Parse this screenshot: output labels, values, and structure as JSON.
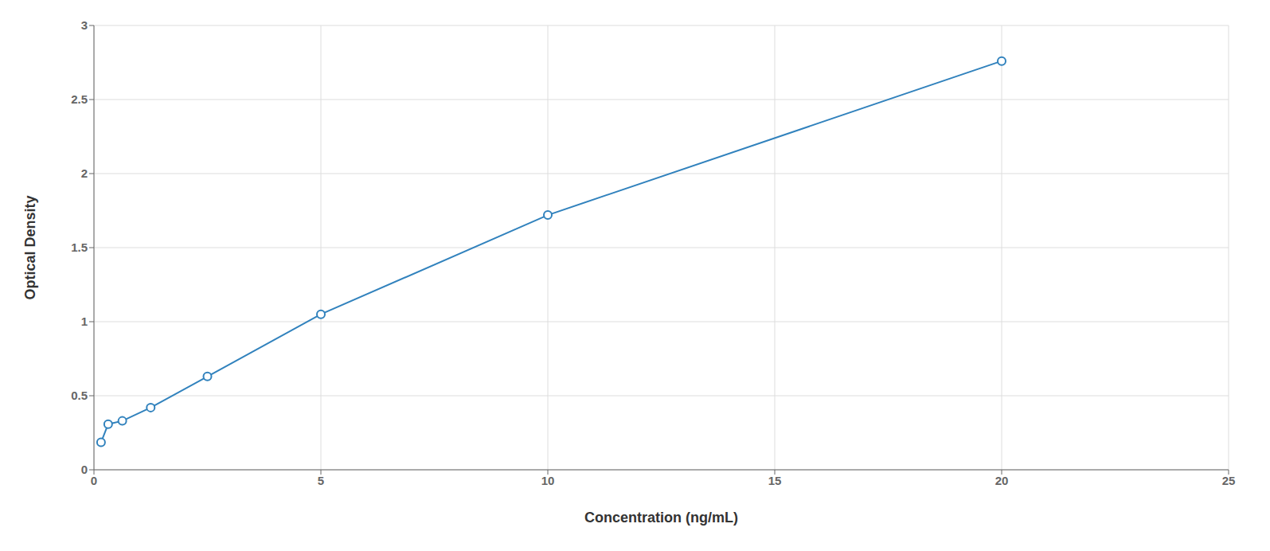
{
  "chart_data": {
    "type": "line",
    "x": [
      0.156,
      0.313,
      0.625,
      1.25,
      2.5,
      5.0,
      10.0,
      20.0
    ],
    "values": [
      0.185,
      0.308,
      0.33,
      0.42,
      0.63,
      1.05,
      1.72,
      2.76
    ],
    "xlabel": "Concentration (ng/mL)",
    "ylabel": "Optical Density",
    "xlim": [
      0,
      25
    ],
    "ylim": [
      0,
      3
    ],
    "xticks": [
      0,
      5,
      10,
      15,
      20,
      25
    ],
    "yticks": [
      0,
      0.5,
      1,
      1.5,
      2,
      2.5,
      3
    ],
    "grid": true,
    "marker": "circle"
  }
}
